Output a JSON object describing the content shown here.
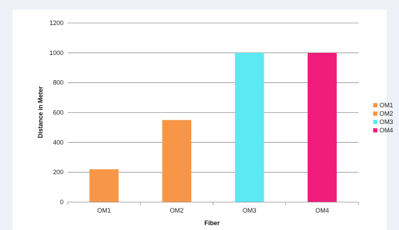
{
  "chart_data": {
    "type": "bar",
    "categories": [
      "OM1",
      "OM2",
      "OM3",
      "OM4"
    ],
    "values": [
      220,
      550,
      1000,
      1000
    ],
    "bar_colors": [
      "#f79646",
      "#f79646",
      "#5ce9f4",
      "#ef1c7c"
    ],
    "title": "",
    "xlabel": "Fiber",
    "ylabel": "Distance in Meter",
    "ylim": [
      0,
      1200
    ],
    "yticks": [
      0,
      200,
      400,
      600,
      800,
      1000,
      1200
    ],
    "grid": true,
    "legend_position": "right",
    "legend": [
      {
        "name": "OM1",
        "color": "#f79646"
      },
      {
        "name": "OM2",
        "color": "#f79646"
      },
      {
        "name": "OM3",
        "color": "#5ce9f4"
      },
      {
        "name": "OM4",
        "color": "#ef1c7c"
      }
    ]
  }
}
